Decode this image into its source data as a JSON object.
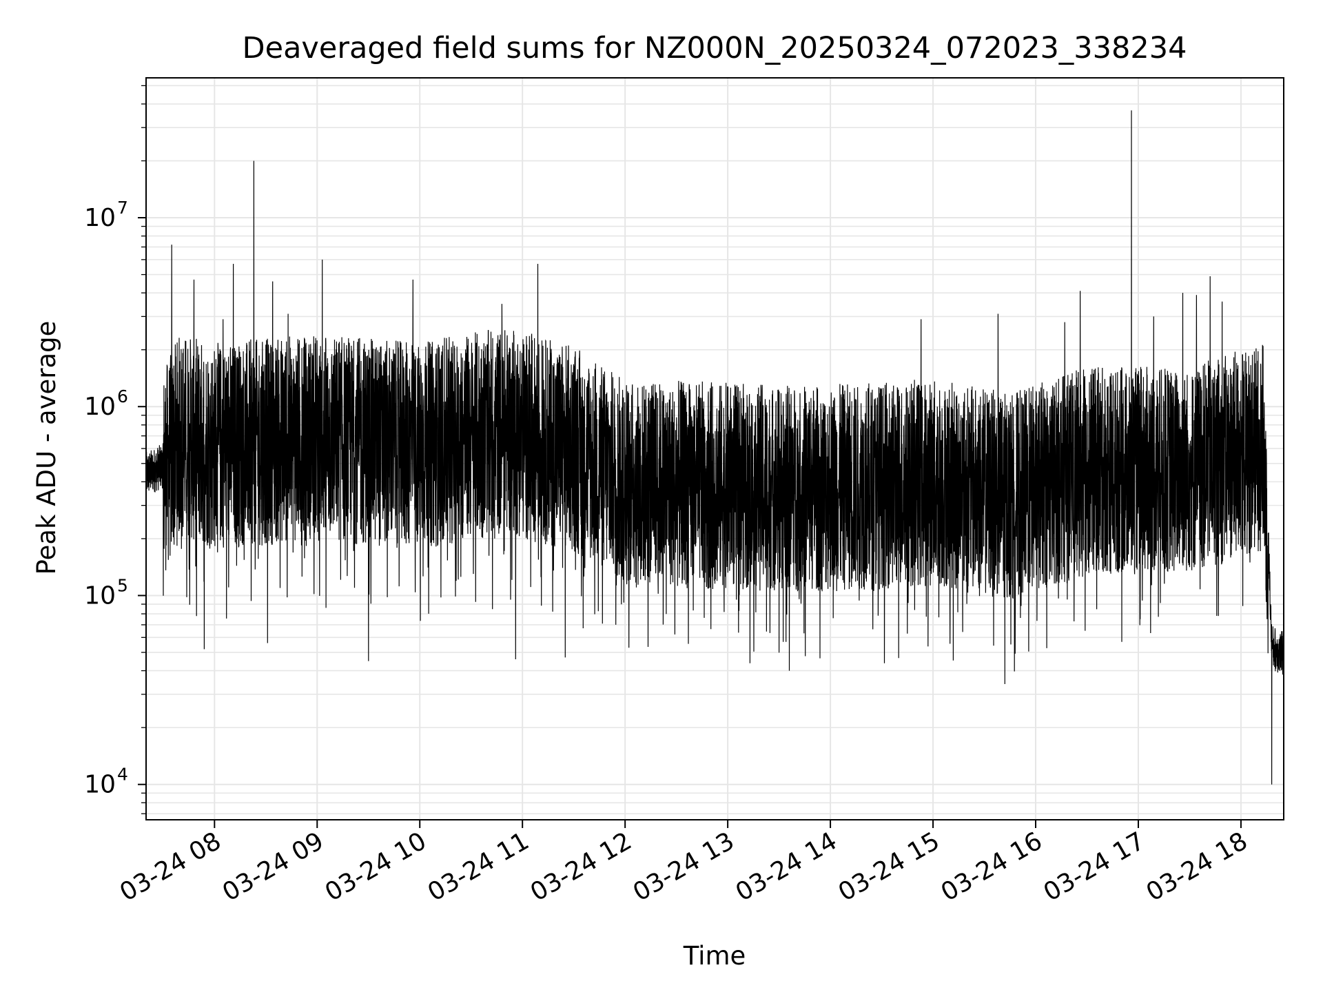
{
  "chart_data": {
    "type": "line",
    "title": "Deaveraged field sums for NZ000N_20250324_072023_338234",
    "xlabel": "Time",
    "ylabel": "Peak ADU - average",
    "x_scale": "time",
    "y_scale": "log",
    "xlim": [
      "2025-03-24 07:20",
      "2025-03-24 18:25"
    ],
    "ylim": [
      6500,
      55000000
    ],
    "grid": "major and minor",
    "x_tick_labels": [
      "03-24 08",
      "03-24 09",
      "03-24 10",
      "03-24 11",
      "03-24 12",
      "03-24 13",
      "03-24 14",
      "03-24 15",
      "03-24 16",
      "03-24 17",
      "03-24 18"
    ],
    "y_ticks": [
      {
        "value": 10000,
        "base": "10",
        "exp": "4"
      },
      {
        "value": 100000,
        "base": "10",
        "exp": "5"
      },
      {
        "value": 1000000,
        "base": "10",
        "exp": "6"
      },
      {
        "value": 10000000,
        "base": "10",
        "exp": "7"
      }
    ],
    "line_color": "#000000",
    "grid_color": "#e6e6e6",
    "series": [
      {
        "baseline": [
          [
            "2025-03-24 07:20",
            450000
          ],
          [
            "2025-03-24 07:30",
            500000
          ],
          [
            "2025-03-24 07:40",
            800000
          ],
          [
            "2025-03-24 08:00",
            700000
          ],
          [
            "2025-03-24 09:00",
            780000
          ],
          [
            "2025-03-24 10:00",
            700000
          ],
          [
            "2025-03-24 10:50",
            850000
          ],
          [
            "2025-03-24 11:30",
            680000
          ],
          [
            "2025-03-24 12:00",
            450000
          ],
          [
            "2025-03-24 13:00",
            430000
          ],
          [
            "2025-03-24 14:00",
            420000
          ],
          [
            "2025-03-24 15:00",
            450000
          ],
          [
            "2025-03-24 15:45",
            380000
          ],
          [
            "2025-03-24 16:30",
            520000
          ],
          [
            "2025-03-24 17:30",
            520000
          ],
          [
            "2025-03-24 18:13",
            700000
          ],
          [
            "2025-03-24 18:16",
            200000
          ],
          [
            "2025-03-24 18:18",
            55000
          ],
          [
            "2025-03-24 18:25",
            50000
          ]
        ],
        "spikes": [
          [
            "2025-03-24 07:35",
            7200000
          ],
          [
            "2025-03-24 07:48",
            4700000
          ],
          [
            "2025-03-24 08:05",
            2900000
          ],
          [
            "2025-03-24 08:11",
            5700000
          ],
          [
            "2025-03-24 08:23",
            20000000
          ],
          [
            "2025-03-24 08:28",
            2200000
          ],
          [
            "2025-03-24 08:34",
            4600000
          ],
          [
            "2025-03-24 08:43",
            3100000
          ],
          [
            "2025-03-24 09:03",
            6000000
          ],
          [
            "2025-03-24 09:13",
            2200000
          ],
          [
            "2025-03-24 09:20",
            2100000
          ],
          [
            "2025-03-24 09:56",
            4700000
          ],
          [
            "2025-03-24 10:48",
            3500000
          ],
          [
            "2025-03-24 10:55",
            2400000
          ],
          [
            "2025-03-24 11:09",
            5700000
          ],
          [
            "2025-03-24 11:12",
            2100000
          ],
          [
            "2025-03-24 14:53",
            2900000
          ],
          [
            "2025-03-24 15:38",
            3100000
          ],
          [
            "2025-03-24 16:17",
            2800000
          ],
          [
            "2025-03-24 16:26",
            4100000
          ],
          [
            "2025-03-24 16:56",
            37000000
          ],
          [
            "2025-03-24 17:09",
            3000000
          ],
          [
            "2025-03-24 17:26",
            4000000
          ],
          [
            "2025-03-24 17:34",
            3900000
          ],
          [
            "2025-03-24 17:42",
            4900000
          ],
          [
            "2025-03-24 17:49",
            3600000
          ]
        ],
        "dips": [
          [
            "2025-03-24 07:54",
            52000
          ],
          [
            "2025-03-24 08:31",
            56000
          ],
          [
            "2025-03-24 09:30",
            45000
          ],
          [
            "2025-03-24 10:56",
            46000
          ],
          [
            "2025-03-24 11:25",
            47000
          ],
          [
            "2025-03-24 13:36",
            40000
          ],
          [
            "2025-03-24 15:42",
            34000
          ],
          [
            "2025-03-24 18:18",
            10000
          ]
        ]
      }
    ]
  }
}
